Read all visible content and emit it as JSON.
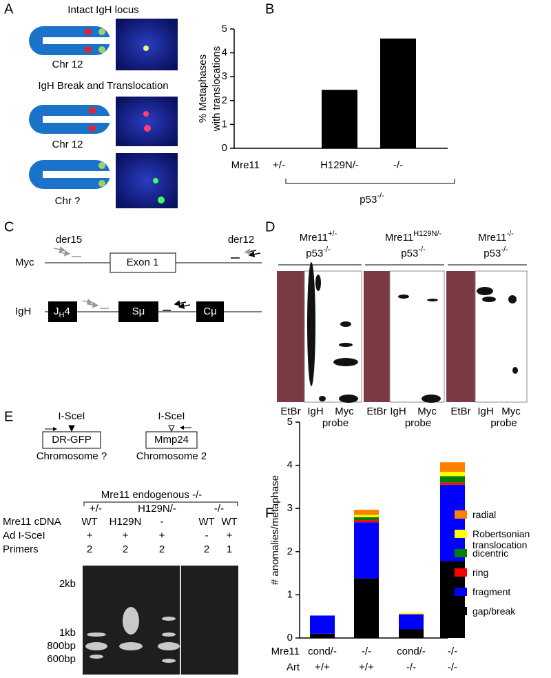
{
  "panel_labels": [
    "A",
    "B",
    "C",
    "D",
    "E",
    "F"
  ],
  "panel_a": {
    "top_title": "Intact IgH locus",
    "bottom_title": "IgH Break and Translocation",
    "chr_labels": [
      "Chr 12",
      "Chr 12",
      "Chr ?"
    ]
  },
  "chart_data": [
    {
      "type": "bar",
      "y_label": [
        "% Metaphases",
        "with translocations"
      ],
      "categories": [
        "+/-",
        "H129N/-",
        "-/-"
      ],
      "values": [
        0,
        2.45,
        4.6
      ],
      "color": "#000000",
      "ylim": [
        0,
        5
      ],
      "yticks": [
        0,
        1,
        2,
        3,
        4,
        5
      ],
      "category_row_label": "Mre11",
      "group_label": "p53",
      "group_label_sup": "-/-"
    },
    {
      "type": "stacked_bar",
      "y_label": "# anomalies/metaphase",
      "categories": [
        "cond/-",
        "-/-",
        "cond/-",
        "-/-"
      ],
      "categories_2": [
        "+/+",
        "+/+",
        "-/-",
        "-/-"
      ],
      "category_row_labels": [
        "Mre11",
        "Art"
      ],
      "ylim": [
        0,
        5
      ],
      "yticks": [
        0,
        1,
        2,
        3,
        4,
        5
      ],
      "legend": "right",
      "series": [
        {
          "name": "gap/break",
          "color": "#000000",
          "values": [
            0.1,
            1.38,
            0.2,
            1.78
          ]
        },
        {
          "name": "fragment",
          "color": "#0000ff",
          "values": [
            0.42,
            1.3,
            0.35,
            1.77
          ]
        },
        {
          "name": "ring",
          "color": "#ff0000",
          "values": [
            0,
            0.05,
            0,
            0.05
          ]
        },
        {
          "name": "dicentric",
          "color": "#008000",
          "values": [
            0,
            0.07,
            0,
            0.15
          ]
        },
        {
          "name": "Robertsonian translocation",
          "color": "#ffff00",
          "values": [
            0,
            0.05,
            0.03,
            0.1
          ]
        },
        {
          "name": "radial",
          "color": "#ff8000",
          "values": [
            0,
            0.12,
            0,
            0.22
          ]
        }
      ]
    }
  ],
  "panel_c": {
    "primer_labels": [
      "der15",
      "der12"
    ],
    "rows": [
      "Myc",
      "IgH"
    ],
    "exon": "Exon 1",
    "jh": "J",
    "jh_sub": "H",
    "jh_num": "4",
    "s_mu": "Sμ",
    "c_mu": "Cμ"
  },
  "panel_d": {
    "groups": [
      {
        "gene": "Mre11",
        "gene_sup": "+/-",
        "p53": "p53",
        "p53_sup": "-/-"
      },
      {
        "gene": "Mre11",
        "gene_sup": "H129N/-",
        "p53": "p53",
        "p53_sup": "-/-"
      },
      {
        "gene": "Mre11",
        "gene_sup": "-/-",
        "p53": "p53",
        "p53_sup": "-/-"
      }
    ],
    "lane_labels": [
      "EtBr",
      "IgH",
      "Myc"
    ],
    "probe": "probe"
  },
  "panel_e": {
    "constructs": [
      {
        "site": "I-SceI",
        "box": "DR-GFP",
        "chromosome": "Chromosome ?"
      },
      {
        "site": "I-SceI",
        "box": "Mmp24",
        "chromosome": "Chromosome 2"
      }
    ],
    "header": "Mre11 endogenous -/-",
    "groups": [
      "+/-",
      "H129N/-",
      "-/-"
    ],
    "rows": [
      {
        "label": "Mre11 cDNA",
        "cells": [
          "WT",
          "H129N",
          "-",
          "WT",
          "WT"
        ]
      },
      {
        "label": "Ad I-SceI",
        "cells": [
          "+",
          "+",
          "+",
          "-",
          "+"
        ]
      },
      {
        "label": "Primers",
        "cells": [
          "2",
          "2",
          "2",
          "2",
          "1"
        ]
      }
    ],
    "markers": [
      "2kb",
      "1kb",
      "800bp",
      "600bp"
    ]
  }
}
